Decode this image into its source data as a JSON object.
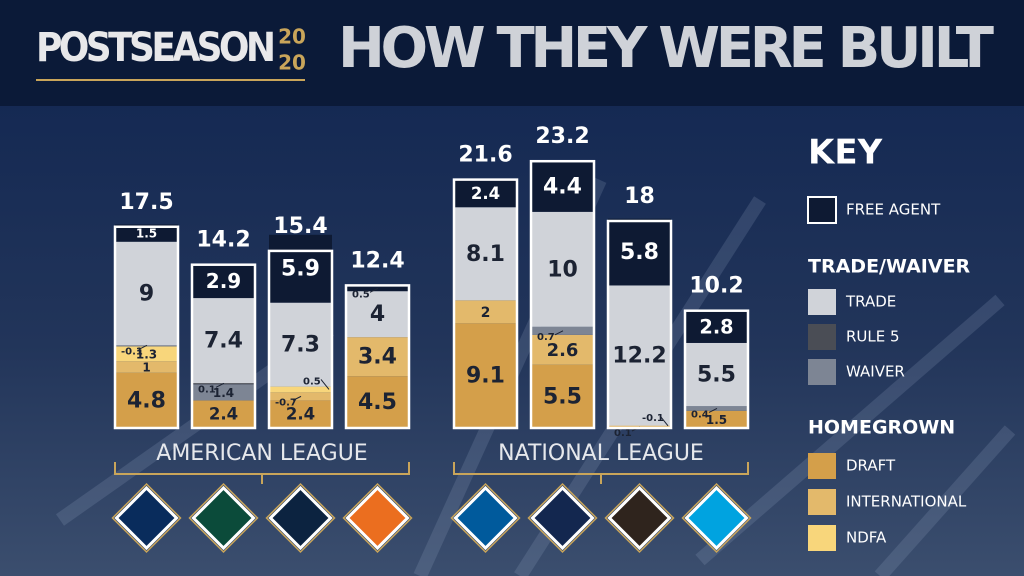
{
  "chart_data": {
    "type": "bar",
    "stacked": true,
    "logo": {
      "text": "POSTSEASON",
      "year_top": "20",
      "year_bottom": "20"
    },
    "title": "HOW THEY WERE BUILT",
    "categories": [
      null,
      null,
      null,
      null,
      null,
      null,
      null,
      null
    ],
    "totals": [
      17.5,
      14.2,
      15.4,
      12.4,
      21.6,
      23.2,
      18,
      10.2
    ],
    "leagues": [
      "AMERICAN LEAGUE",
      "NATIONAL LEAGUE"
    ],
    "key_title": "KEY",
    "legend_headers": [
      "TRADE/WAIVER",
      "HOMEGROWN"
    ],
    "series": [
      {
        "name": "FREE AGENT",
        "color": "#0e1a33",
        "values": [
          1.5,
          2.9,
          5.9,
          0.5,
          2.4,
          4.4,
          5.8,
          2.8
        ]
      },
      {
        "name": "TRADE",
        "color": "#d0d3d9",
        "values": [
          9,
          7.4,
          7.3,
          4,
          8.1,
          10,
          12.2,
          5.5
        ]
      },
      {
        "name": "RULE 5",
        "color": "#4a4d55",
        "values": [
          null,
          0.1,
          null,
          null,
          null,
          null,
          null,
          null
        ]
      },
      {
        "name": "WAIVER",
        "color": "#7d8594",
        "values": [
          -0.1,
          1.4,
          null,
          null,
          null,
          0.7,
          null,
          0.4
        ]
      },
      {
        "name": "DRAFT",
        "color": "#d49f4a",
        "values": [
          4.8,
          2.4,
          2.4,
          4.5,
          9.1,
          5.5,
          0.1,
          1.5
        ]
      },
      {
        "name": "INTERNATIONAL",
        "color": "#e3b96b",
        "values": [
          1,
          null,
          -0.7,
          3.4,
          2,
          2.6,
          -0.1,
          null
        ]
      },
      {
        "name": "NDFA",
        "color": "#f8d67b",
        "values": [
          1.3,
          null,
          0.5,
          null,
          null,
          null,
          null,
          null
        ]
      }
    ]
  }
}
